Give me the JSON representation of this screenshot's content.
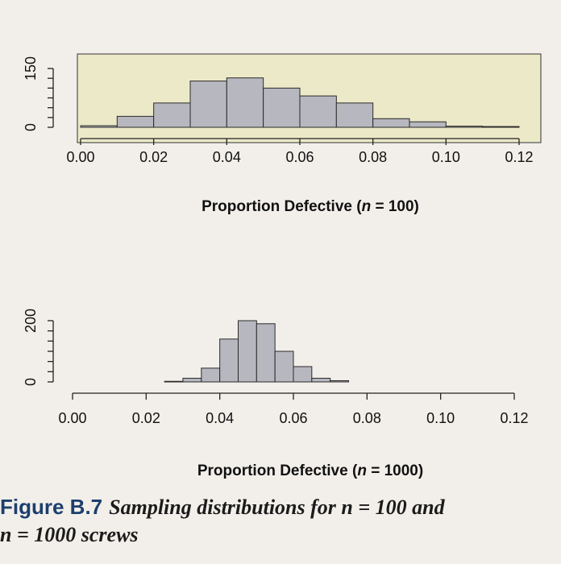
{
  "chart_data": [
    {
      "type": "bar",
      "subtype": "histogram",
      "xlabel": "Proportion Defective (n = 100)",
      "xlabel_prefix": "Proportion Defective (",
      "xlabel_italic": "n",
      "xlabel_suffix": " = 100)",
      "x_ticks": [
        "0.00",
        "0.02",
        "0.04",
        "0.06",
        "0.08",
        "0.10",
        "0.12"
      ],
      "xlim": [
        0.0,
        0.12
      ],
      "y_ticks": [
        "0",
        "150"
      ],
      "ylim": [
        0,
        150
      ],
      "bins": [
        {
          "x0": 0.0,
          "x1": 0.01,
          "count": 4
        },
        {
          "x0": 0.01,
          "x1": 0.02,
          "count": 28
        },
        {
          "x0": 0.02,
          "x1": 0.03,
          "count": 62
        },
        {
          "x0": 0.03,
          "x1": 0.04,
          "count": 118
        },
        {
          "x0": 0.04,
          "x1": 0.05,
          "count": 126
        },
        {
          "x0": 0.05,
          "x1": 0.06,
          "count": 100
        },
        {
          "x0": 0.06,
          "x1": 0.07,
          "count": 80
        },
        {
          "x0": 0.07,
          "x1": 0.08,
          "count": 62
        },
        {
          "x0": 0.08,
          "x1": 0.09,
          "count": 22
        },
        {
          "x0": 0.09,
          "x1": 0.1,
          "count": 14
        },
        {
          "x0": 0.1,
          "x1": 0.11,
          "count": 3
        },
        {
          "x0": 0.11,
          "x1": 0.12,
          "count": 2
        }
      ]
    },
    {
      "type": "bar",
      "subtype": "histogram",
      "xlabel": "Proportion Defective (n = 1000)",
      "xlabel_prefix": "Proportion Defective (",
      "xlabel_italic": "n",
      "xlabel_suffix": " = 1000)",
      "x_ticks": [
        "0.00",
        "0.02",
        "0.04",
        "0.06",
        "0.08",
        "0.10",
        "0.12"
      ],
      "xlim": [
        0.0,
        0.12
      ],
      "y_ticks": [
        "0",
        "200"
      ],
      "ylim": [
        0,
        200
      ],
      "bins": [
        {
          "x0": 0.025,
          "x1": 0.03,
          "count": 2
        },
        {
          "x0": 0.03,
          "x1": 0.035,
          "count": 12
        },
        {
          "x0": 0.035,
          "x1": 0.04,
          "count": 45
        },
        {
          "x0": 0.04,
          "x1": 0.045,
          "count": 140
        },
        {
          "x0": 0.045,
          "x1": 0.05,
          "count": 200
        },
        {
          "x0": 0.05,
          "x1": 0.055,
          "count": 190
        },
        {
          "x0": 0.055,
          "x1": 0.06,
          "count": 100
        },
        {
          "x0": 0.06,
          "x1": 0.065,
          "count": 50
        },
        {
          "x0": 0.065,
          "x1": 0.07,
          "count": 12
        },
        {
          "x0": 0.07,
          "x1": 0.075,
          "count": 4
        }
      ]
    }
  ],
  "caption": {
    "label": "Figure B.7",
    "text": "Sampling distributions for n = 100 and",
    "text_line2": "n = 1000 screws"
  },
  "colors": {
    "panel_bg_top": "#ece9c8",
    "bar_fill": "#b7b7bf",
    "caption_label": "#1d3f6e"
  }
}
